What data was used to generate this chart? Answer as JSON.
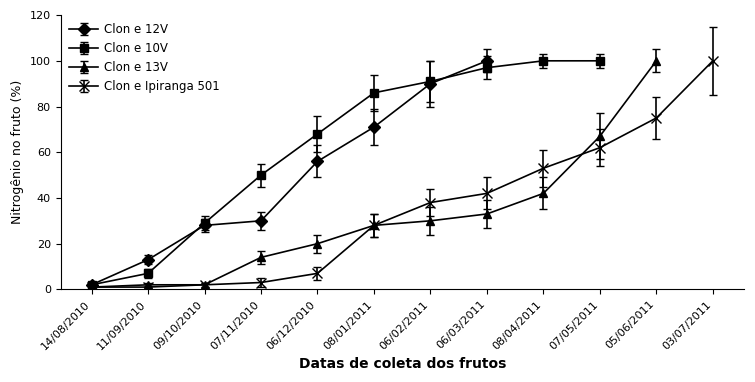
{
  "x_labels": [
    "14/08/2010",
    "11/09/2010",
    "09/10/2010",
    "07/11/2010",
    "06/12/2010",
    "08/01/2011",
    "06/02/2011",
    "06/03/2011",
    "08/04/2011",
    "07/05/2011",
    "05/06/2011",
    "03/07/2011"
  ],
  "clone12V": [
    2,
    13,
    28,
    30,
    56,
    71,
    90,
    100,
    null,
    null,
    null,
    null
  ],
  "clone12V_err": [
    0.5,
    2,
    3,
    4,
    7,
    8,
    10,
    5,
    null,
    null,
    null,
    null
  ],
  "clone10V": [
    2,
    7,
    29,
    50,
    68,
    86,
    91,
    97,
    100,
    100,
    null,
    null
  ],
  "clone10V_err": [
    0.5,
    2,
    3,
    5,
    8,
    8,
    9,
    5,
    3,
    3,
    null,
    null
  ],
  "clone13V": [
    1,
    2,
    2,
    14,
    20,
    28,
    30,
    33,
    42,
    67,
    100,
    null
  ],
  "clone13V_err": [
    0.5,
    1,
    1,
    3,
    4,
    5,
    6,
    6,
    7,
    10,
    5,
    null
  ],
  "cloneIpiranga": [
    1,
    1,
    2,
    3,
    7,
    28,
    38,
    42,
    53,
    62,
    75,
    100
  ],
  "cloneIpiranga_err": [
    0.5,
    0.5,
    1,
    2,
    3,
    5,
    6,
    7,
    8,
    8,
    9,
    15
  ],
  "ylabel": "Nitrogênio no fruto (%)",
  "xlabel": "Datas de coleta dos frutos",
  "ylim": [
    0,
    120
  ],
  "yticks": [
    0,
    20,
    40,
    60,
    80,
    100,
    120
  ],
  "legend_labels": [
    "Clon e 12V",
    "Clon e 10V",
    "Clon e 13V",
    "Clon e Ipiranga 501"
  ],
  "line_color": "#000000",
  "marker_12V": "D",
  "marker_10V": "s",
  "marker_13V": "^",
  "marker_Ipiranga": "x"
}
